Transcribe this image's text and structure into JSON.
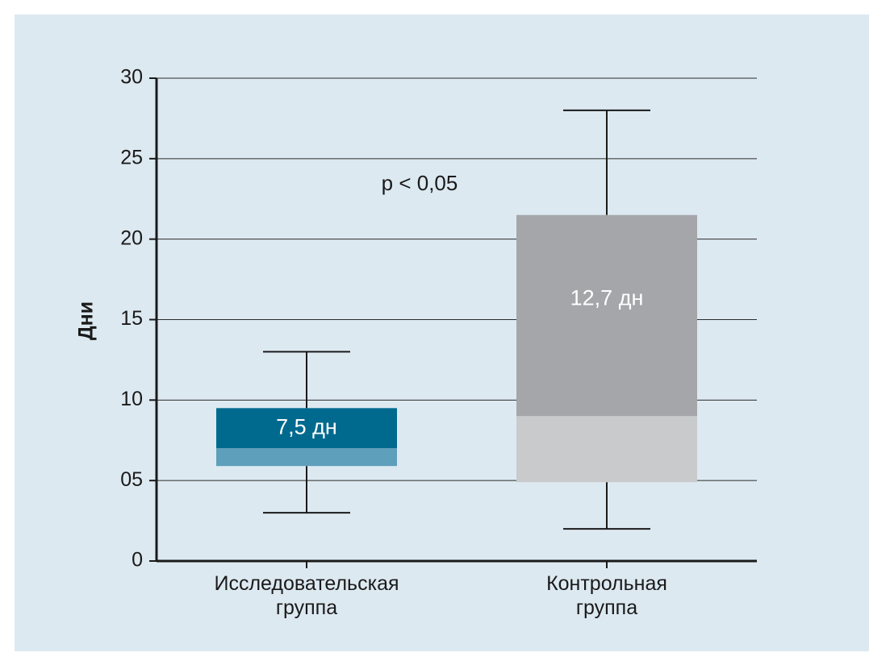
{
  "chart_data": {
    "type": "box",
    "ylabel": "Дни",
    "ylim": [
      0,
      30
    ],
    "yticks": [
      0,
      5,
      10,
      15,
      20,
      25,
      30
    ],
    "ytick_labels": [
      "0",
      "05",
      "10",
      "15",
      "20",
      "25",
      "30"
    ],
    "grid": true,
    "annotation": "p < 0,05",
    "groups": [
      {
        "label_lines": [
          "Исследовательская",
          "группа"
        ],
        "whisker_low": 3,
        "q1": 5.9,
        "median": 7,
        "q3": 9.5,
        "whisker_high": 13,
        "box_label": "7,5 дн",
        "color_upper": "#006a8e",
        "color_lower": "#5e9fbb"
      },
      {
        "label_lines": [
          "Контрольная",
          "группа"
        ],
        "whisker_low": 2,
        "q1": 4.9,
        "median": 9,
        "q3": 21.5,
        "whisker_high": 28,
        "box_label": "12,7 дн",
        "color_upper": "#a5a6aa",
        "color_lower": "#c9cacc"
      }
    ]
  }
}
